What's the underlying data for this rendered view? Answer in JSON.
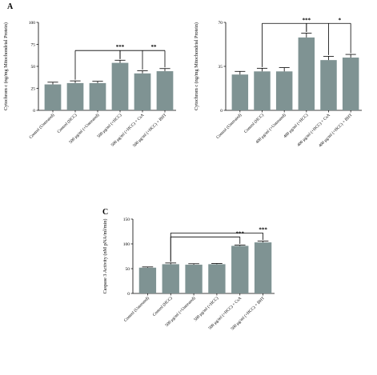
{
  "bar_color": "#7f9393",
  "chart_data": [
    {
      "panel": "A",
      "type": "bar",
      "ylabel": "Cytochrom c (ng/mg Mitochondrial Protein)",
      "ylim": [
        0,
        100
      ],
      "yticks": [
        "0",
        "25",
        "50",
        "75",
        "100"
      ],
      "categories": [
        "Control (Untreated)",
        "Control (HCC)",
        "500 μg/ml (+Untreated)",
        "500 μg/ml (+HCC)",
        "500 μg/ml (+HCC) + CsA",
        "500 μg/ml (+HCC) + BHT"
      ],
      "values": [
        29.5,
        31,
        31,
        54,
        42,
        44.5
      ],
      "errors": [
        2.5,
        2.5,
        2,
        3,
        3,
        3
      ],
      "significance": [
        {
          "label": "***",
          "from": 1,
          "to": [
            3
          ]
        },
        {
          "label": "**",
          "from": 3,
          "to": [
            4,
            5
          ]
        }
      ]
    },
    {
      "panel": "",
      "type": "bar",
      "ylabel": "Cytochrom c (ng/mg Mitochondrial Protein)",
      "ylim": [
        0,
        70
      ],
      "yticks": [
        "0",
        "35",
        "70"
      ],
      "categories": [
        "Control (Untreated)",
        "Control (HCC)",
        "400 μg/ml (+Untreated)",
        "400 μg/ml (+HCC)",
        "400 μg/ml (+HCC) + CsA",
        "400 μg/ml (+HCC) + BHT"
      ],
      "values": [
        28.5,
        31,
        31,
        58,
        40,
        42
      ],
      "errors": [
        2.5,
        2.5,
        3,
        3.5,
        3,
        2.5
      ],
      "significance": [
        {
          "label": "***",
          "from": 1,
          "to": [
            3
          ]
        },
        {
          "label": "*",
          "from": 3,
          "to": [
            4,
            5
          ]
        }
      ]
    },
    {
      "panel": "C",
      "type": "bar",
      "ylabel": "Caspase 3 Activity (nM pNA/ml/min)",
      "ylim": [
        0,
        150
      ],
      "yticks": [
        "0",
        "50",
        "100",
        "150"
      ],
      "categories": [
        "Control (Untreated)",
        "Control (HCC)",
        "500 μg/ml (+Untreated)",
        "500 μg/ml (+HCC)",
        "500 μg/ml (+HCC) + CsA",
        "500 μg/ml (+HCC) + BHT"
      ],
      "values": [
        52,
        59,
        58,
        59,
        96,
        103
      ],
      "errors": [
        1.5,
        2.5,
        2,
        1.5,
        1.5,
        2.5
      ],
      "significance": [
        {
          "label": "***",
          "from": 1,
          "to": [
            4
          ]
        },
        {
          "label": "***",
          "from": 1,
          "to": [
            5
          ]
        }
      ]
    }
  ]
}
